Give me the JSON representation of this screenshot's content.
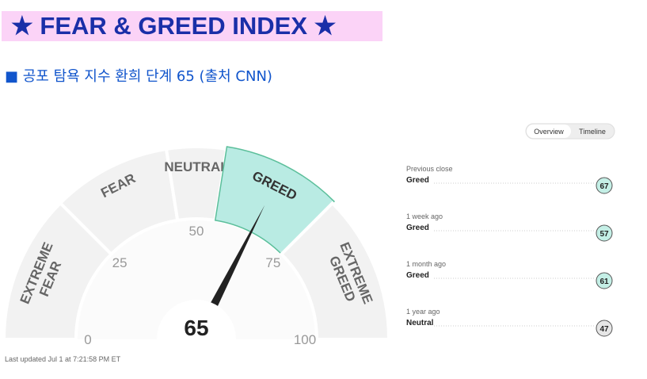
{
  "header": {
    "title": "★ FEAR & GREED INDEX ★",
    "subtitle": "■ 공포 탐욕 지수 환희 단계 65 (출처 CNN)"
  },
  "chart_data": {
    "type": "gauge",
    "value": 65,
    "xlim": [
      0,
      100
    ],
    "xticks": [
      0,
      25,
      50,
      75,
      100
    ],
    "segments": [
      {
        "label": "EXTREME FEAR",
        "from": 0,
        "to": 25,
        "color": "#f2f2f2"
      },
      {
        "label": "FEAR",
        "from": 25,
        "to": 45,
        "color": "#f2f2f2"
      },
      {
        "label": "NEUTRAL",
        "from": 45,
        "to": 55,
        "color": "#f2f2f2"
      },
      {
        "label": "GREED",
        "from": 55,
        "to": 75,
        "color": "#b9ebe3"
      },
      {
        "label": "EXTREME GREED",
        "from": 75,
        "to": 100,
        "color": "#f2f2f2"
      }
    ],
    "active_segment": 3
  },
  "tabs": [
    "Overview",
    "Timeline"
  ],
  "history": [
    {
      "period": "Previous close",
      "status": "Greed",
      "value": 67,
      "color": "#c4efe6"
    },
    {
      "period": "1 week ago",
      "status": "Greed",
      "value": 57,
      "color": "#c4efe6"
    },
    {
      "period": "1 month ago",
      "status": "Greed",
      "value": 61,
      "color": "#c4efe6"
    },
    {
      "period": "1 year ago",
      "status": "Neutral",
      "value": 47,
      "color": "#e6e6e6"
    }
  ],
  "updated": "Last updated Jul 1 at 7:21:58 PM ET"
}
